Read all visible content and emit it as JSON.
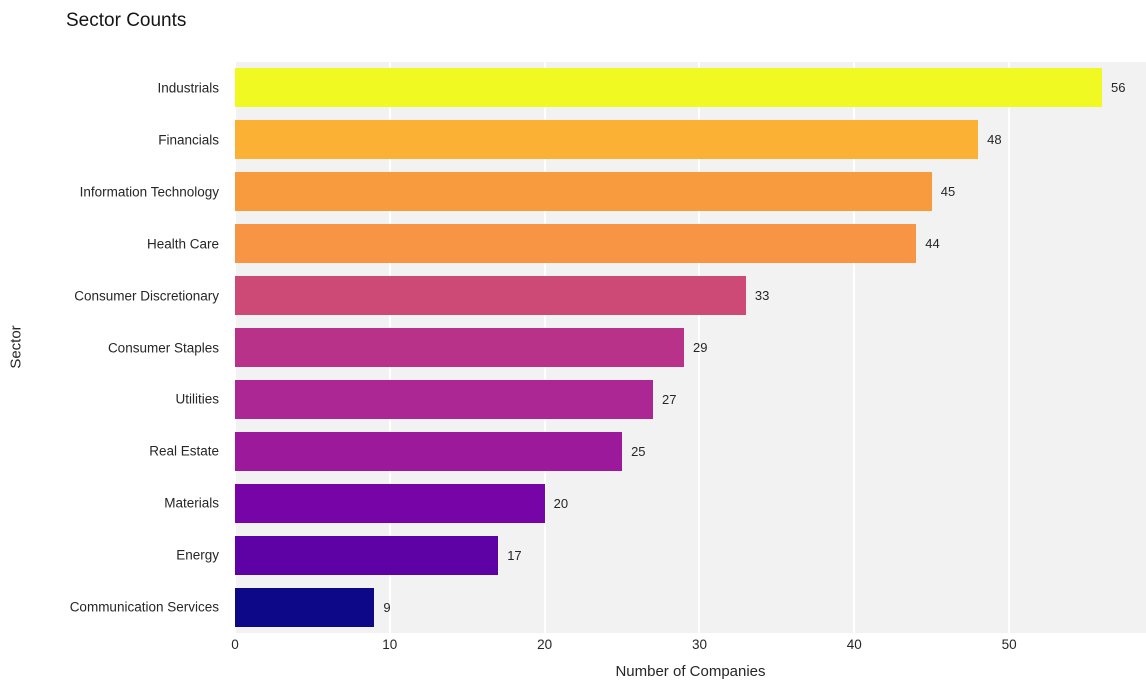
{
  "chart_data": {
    "type": "bar",
    "orientation": "horizontal",
    "title": "Sector Counts",
    "xlabel": "Number of Companies",
    "ylabel": "Sector",
    "categories": [
      "Industrials",
      "Financials",
      "Information Technology",
      "Health Care",
      "Consumer Discretionary",
      "Consumer Staples",
      "Utilities",
      "Real Estate",
      "Materials",
      "Energy",
      "Communication Services"
    ],
    "values": [
      56,
      48,
      45,
      44,
      33,
      29,
      27,
      25,
      20,
      17,
      9
    ],
    "value_labels": [
      "56",
      "48",
      "45",
      "44",
      "33",
      "29",
      "27",
      "25",
      "20",
      "17",
      "9"
    ],
    "bar_colors": [
      "#F0F921",
      "#FBB234",
      "#F89A3E",
      "#F79544",
      "#CD4A76",
      "#B93289",
      "#AC2694",
      "#9D199C",
      "#7704A7",
      "#5E01A5",
      "#0D0887"
    ],
    "colormap": "plasma",
    "xticks": [
      "0",
      "10",
      "20",
      "30",
      "40",
      "50"
    ],
    "xtick_values": [
      0,
      10,
      20,
      30,
      40,
      50
    ],
    "xlim": [
      0,
      58.84
    ],
    "grid": "vertical white gridlines",
    "legend": "none",
    "panel_bg": "#F2F2F2",
    "grid_color": "#FFFFFF",
    "text_color": "#262626"
  }
}
